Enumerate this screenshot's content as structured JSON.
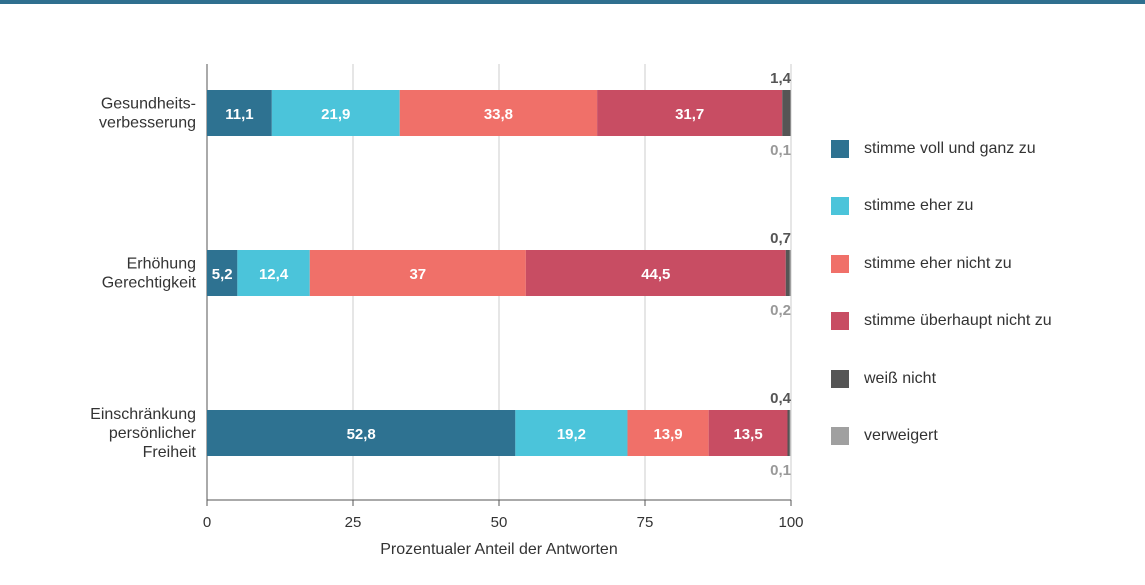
{
  "colors": {
    "top_rule": "#2f6f8f",
    "grid": "#cccccc",
    "axis": "#555555",
    "text": "#333333",
    "label_light": "#ffffff",
    "label_small_dark": "#555555",
    "label_small_gray": "#999999"
  },
  "chart_data": {
    "type": "bar",
    "orientation": "horizontal",
    "stacked": true,
    "categories": [
      [
        "Gesundheits-",
        "verbesserung"
      ],
      [
        "Erhöhung",
        "Gerechtigkeit"
      ],
      [
        "Einschränkung",
        "persönlicher",
        "Freiheit"
      ]
    ],
    "series": [
      {
        "name": "stimme voll und ganz zu",
        "color": "#2e7291",
        "values": [
          11.1,
          5.2,
          52.8
        ],
        "labels": [
          "11,1",
          "5,2",
          "52,8"
        ]
      },
      {
        "name": "stimme eher zu",
        "color": "#4bc4da",
        "values": [
          21.9,
          12.4,
          19.2
        ],
        "labels": [
          "21,9",
          "12,4",
          "19,2"
        ]
      },
      {
        "name": "stimme eher nicht zu",
        "color": "#f07069",
        "values": [
          33.8,
          37,
          13.9
        ],
        "labels": [
          "33,8",
          "37",
          "13,9"
        ]
      },
      {
        "name": "stimme überhaupt nicht zu",
        "color": "#c84d63",
        "values": [
          31.7,
          44.5,
          13.5
        ],
        "labels": [
          "31,7",
          "44,5",
          "13,5"
        ]
      },
      {
        "name": "weiß nicht",
        "color": "#555555",
        "values": [
          1.4,
          0.7,
          0.4
        ],
        "labels": [
          "1,4",
          "0,7",
          "0,4"
        ]
      },
      {
        "name": "verweigert",
        "color": "#a0a0a0",
        "values": [
          0.1,
          0.2,
          0.1
        ],
        "labels": [
          "0,1",
          "0,2",
          "0,1"
        ]
      }
    ],
    "xlim": [
      0,
      100
    ],
    "xticks": [
      0,
      25,
      50,
      75,
      100
    ],
    "xlabel": "Prozentualer Anteil der Antworten",
    "ylabel": "",
    "title": "",
    "grid": true,
    "legend": "right"
  }
}
